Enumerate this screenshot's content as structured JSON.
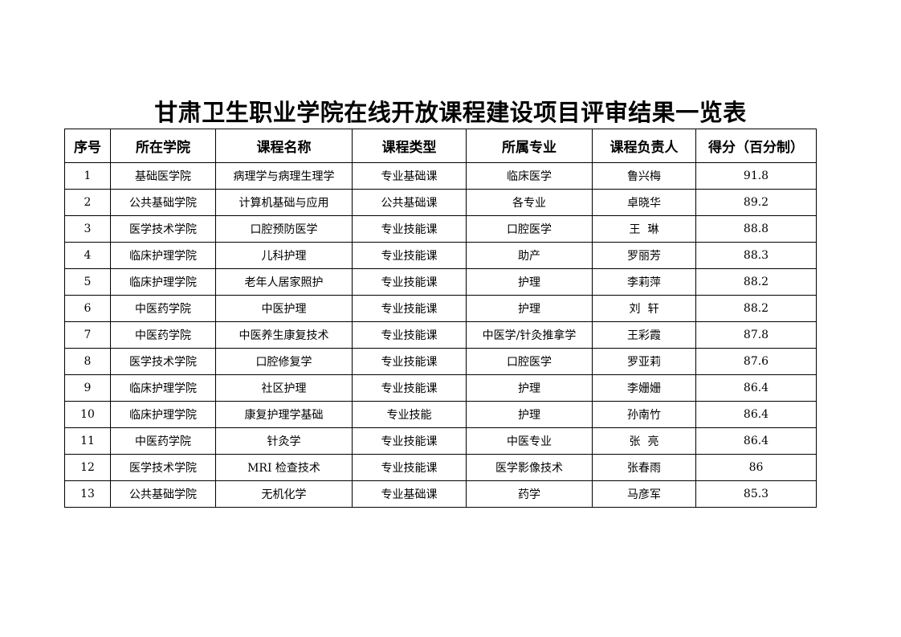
{
  "title": "甘肃卫生职业学院在线开放课程建设项目评审结果一览表",
  "table": {
    "headers": [
      "序号",
      "所在学院",
      "课程名称",
      "课程类型",
      "所属专业",
      "课程负责人",
      "得分（百分制）"
    ],
    "rows": [
      [
        "1",
        "基础医学院",
        "病理学与病理生理学",
        "专业基础课",
        "临床医学",
        "鲁兴梅",
        "91.8"
      ],
      [
        "2",
        "公共基础学院",
        "计算机基础与应用",
        "公共基础课",
        "各专业",
        "卓晓华",
        "89.2"
      ],
      [
        "3",
        "医学技术学院",
        "口腔预防医学",
        "专业技能课",
        "口腔医学",
        "王  琳",
        "88.8"
      ],
      [
        "4",
        "临床护理学院",
        "儿科护理",
        "专业技能课",
        "助产",
        "罗丽芳",
        "88.3"
      ],
      [
        "5",
        "临床护理学院",
        "老年人居家照护",
        "专业技能课",
        "护理",
        "李莉萍",
        "88.2"
      ],
      [
        "6",
        "中医药学院",
        "中医护理",
        "专业技能课",
        "护理",
        "刘  轩",
        "88.2"
      ],
      [
        "7",
        "中医药学院",
        "中医养生康复技术",
        "专业技能课",
        "中医学/针灸推拿学",
        "王彩霞",
        "87.8"
      ],
      [
        "8",
        "医学技术学院",
        "口腔修复学",
        "专业技能课",
        "口腔医学",
        "罗亚莉",
        "87.6"
      ],
      [
        "9",
        "临床护理学院",
        "社区护理",
        "专业技能课",
        "护理",
        "李姗姗",
        "86.4"
      ],
      [
        "10",
        "临床护理学院",
        "康复护理学基础",
        "专业技能",
        "护理",
        "孙南竹",
        "86.4"
      ],
      [
        "11",
        "中医药学院",
        "针灸学",
        "专业技能课",
        "中医专业",
        "张  亮",
        "86.4"
      ],
      [
        "12",
        "医学技术学院",
        "MRI 检查技术",
        "专业技能课",
        "医学影像技术",
        "张春雨",
        "86"
      ],
      [
        "13",
        "公共基础学院",
        "无机化学",
        "专业基础课",
        "药学",
        "马彦军",
        "85.3"
      ]
    ]
  }
}
